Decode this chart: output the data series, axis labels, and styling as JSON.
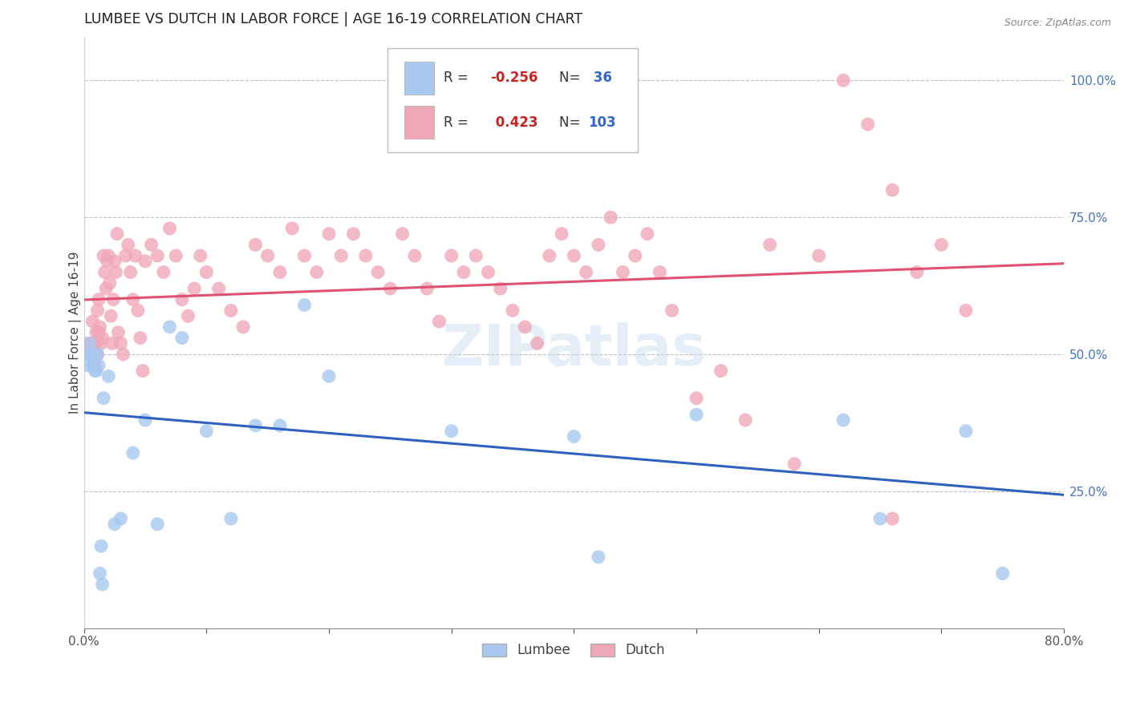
{
  "title": "LUMBEE VS DUTCH IN LABOR FORCE | AGE 16-19 CORRELATION CHART",
  "source": "Source: ZipAtlas.com",
  "ylabel": "In Labor Force | Age 16-19",
  "xlim": [
    0.0,
    0.8
  ],
  "ylim": [
    0.0,
    1.08
  ],
  "lumbee_R": -0.256,
  "lumbee_N": 36,
  "dutch_R": 0.423,
  "dutch_N": 103,
  "lumbee_color": "#a8c8f0",
  "dutch_color": "#f0a8b8",
  "lumbee_line_color": "#3060c0",
  "dutch_line_color": "#e05070",
  "legend_label_lumbee": "Lumbee",
  "legend_label_dutch": "Dutch",
  "lumbee_x": [
    0.003,
    0.004,
    0.005,
    0.006,
    0.007,
    0.008,
    0.009,
    0.01,
    0.011,
    0.012,
    0.013,
    0.014,
    0.015,
    0.016,
    0.02,
    0.025,
    0.03,
    0.04,
    0.05,
    0.06,
    0.07,
    0.08,
    0.1,
    0.12,
    0.14,
    0.16,
    0.18,
    0.2,
    0.3,
    0.4,
    0.42,
    0.5,
    0.62,
    0.65,
    0.72,
    0.75
  ],
  "lumbee_y": [
    0.48,
    0.5,
    0.52,
    0.5,
    0.5,
    0.48,
    0.47,
    0.47,
    0.5,
    0.48,
    0.1,
    0.15,
    0.08,
    0.42,
    0.46,
    0.19,
    0.2,
    0.32,
    0.38,
    0.19,
    0.55,
    0.53,
    0.36,
    0.2,
    0.37,
    0.37,
    0.59,
    0.46,
    0.36,
    0.35,
    0.13,
    0.39,
    0.38,
    0.2,
    0.36,
    0.1
  ],
  "dutch_x": [
    0.003,
    0.004,
    0.005,
    0.006,
    0.007,
    0.008,
    0.008,
    0.009,
    0.009,
    0.01,
    0.01,
    0.011,
    0.011,
    0.012,
    0.012,
    0.013,
    0.014,
    0.015,
    0.016,
    0.017,
    0.018,
    0.019,
    0.02,
    0.021,
    0.022,
    0.023,
    0.024,
    0.025,
    0.026,
    0.027,
    0.028,
    0.03,
    0.032,
    0.034,
    0.036,
    0.038,
    0.04,
    0.042,
    0.044,
    0.046,
    0.048,
    0.05,
    0.055,
    0.06,
    0.065,
    0.07,
    0.075,
    0.08,
    0.085,
    0.09,
    0.095,
    0.1,
    0.11,
    0.12,
    0.13,
    0.14,
    0.15,
    0.16,
    0.17,
    0.18,
    0.19,
    0.2,
    0.21,
    0.22,
    0.23,
    0.24,
    0.25,
    0.26,
    0.27,
    0.28,
    0.29,
    0.3,
    0.31,
    0.32,
    0.33,
    0.34,
    0.35,
    0.36,
    0.37,
    0.38,
    0.39,
    0.4,
    0.41,
    0.42,
    0.43,
    0.44,
    0.45,
    0.46,
    0.47,
    0.48,
    0.5,
    0.52,
    0.54,
    0.56,
    0.6,
    0.62,
    0.64,
    0.66,
    0.68,
    0.7,
    0.58,
    0.66,
    0.72
  ],
  "dutch_y": [
    0.52,
    0.5,
    0.52,
    0.5,
    0.56,
    0.52,
    0.48,
    0.52,
    0.48,
    0.54,
    0.5,
    0.5,
    0.58,
    0.6,
    0.54,
    0.55,
    0.52,
    0.53,
    0.68,
    0.65,
    0.62,
    0.67,
    0.68,
    0.63,
    0.57,
    0.52,
    0.6,
    0.67,
    0.65,
    0.72,
    0.54,
    0.52,
    0.5,
    0.68,
    0.7,
    0.65,
    0.6,
    0.68,
    0.58,
    0.53,
    0.47,
    0.67,
    0.7,
    0.68,
    0.65,
    0.73,
    0.68,
    0.6,
    0.57,
    0.62,
    0.68,
    0.65,
    0.62,
    0.58,
    0.55,
    0.7,
    0.68,
    0.65,
    0.73,
    0.68,
    0.65,
    0.72,
    0.68,
    0.72,
    0.68,
    0.65,
    0.62,
    0.72,
    0.68,
    0.62,
    0.56,
    0.68,
    0.65,
    0.68,
    0.65,
    0.62,
    0.58,
    0.55,
    0.52,
    0.68,
    0.72,
    0.68,
    0.65,
    0.7,
    0.75,
    0.65,
    0.68,
    0.72,
    0.65,
    0.58,
    0.42,
    0.47,
    0.38,
    0.7,
    0.68,
    1.0,
    0.92,
    0.8,
    0.65,
    0.7,
    0.3,
    0.2,
    0.58
  ]
}
